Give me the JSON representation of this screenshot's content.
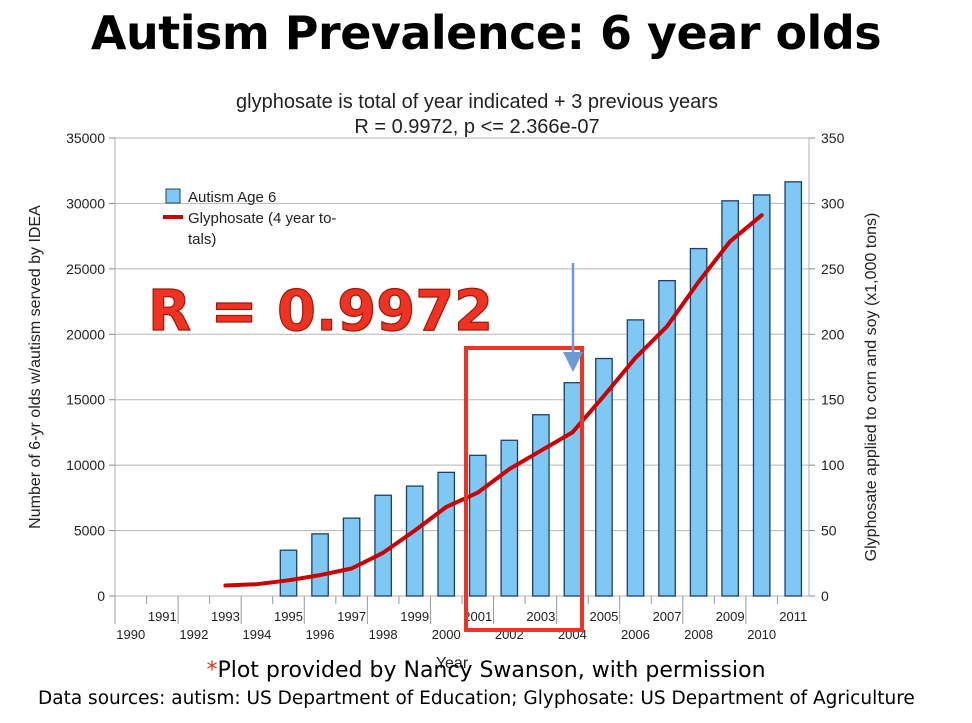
{
  "page_title": "Autism Prevalence: 6 year olds",
  "credit": {
    "star": "*",
    "text": "Plot provided by Nancy Swanson, with permission"
  },
  "sources": "Data sources: autism: US Department of Education; Glyphosate: US Department of Agriculture",
  "annotation": {
    "label": "R = 0.9972",
    "color": "#ee3322"
  },
  "chart_data": {
    "type": "bar",
    "title_lines": [
      "glyphosate is total of year indicated + 3 previous years",
      "R = 0.9972, p <= 2.366e-07"
    ],
    "xlabel": "Year",
    "ylabel_left": "Number of 6-yr olds w/autism served by IDEA",
    "ylabel_right": "Glyphosate applied to corn and soy (x1,000 tons)",
    "years": [
      1990,
      1991,
      1992,
      1993,
      1994,
      1995,
      1996,
      1997,
      1998,
      1999,
      2000,
      2001,
      2002,
      2003,
      2004,
      2005,
      2006,
      2007,
      2008,
      2009,
      2010,
      2011
    ],
    "ylim_left": [
      0,
      35000
    ],
    "yticks_left": [
      0,
      5000,
      10000,
      15000,
      20000,
      25000,
      30000,
      35000
    ],
    "ylim_right": [
      0,
      350
    ],
    "yticks_right": [
      0,
      50,
      100,
      150,
      200,
      250,
      300,
      350
    ],
    "legend_position": "top-left",
    "grid": true,
    "series": [
      {
        "name": "Autism Age 6",
        "kind": "bar",
        "color": "#7fc8f4",
        "x": [
          1995,
          1996,
          1997,
          1998,
          1999,
          2000,
          2001,
          2002,
          2003,
          2004,
          2005,
          2006,
          2007,
          2008,
          2009,
          2010,
          2011
        ],
        "values": [
          3500,
          4750,
          5950,
          7700,
          8400,
          9450,
          10750,
          11900,
          13850,
          16300,
          18150,
          21100,
          24100,
          26550,
          30200,
          30650,
          31650
        ]
      },
      {
        "name": "Glyphosate (4 year to-tals)",
        "kind": "line",
        "axis": "right",
        "color": "#cc0000",
        "x": [
          1993,
          1994,
          1995,
          1996,
          1997,
          1998,
          1999,
          2000,
          2001,
          2002,
          2003,
          2004,
          2005,
          2006,
          2007,
          2008,
          2009,
          2010
        ],
        "values": [
          8,
          9,
          12,
          16,
          21,
          33,
          50,
          68,
          79,
          97,
          111,
          125,
          153,
          182,
          206,
          240,
          271,
          291
        ]
      }
    ]
  }
}
